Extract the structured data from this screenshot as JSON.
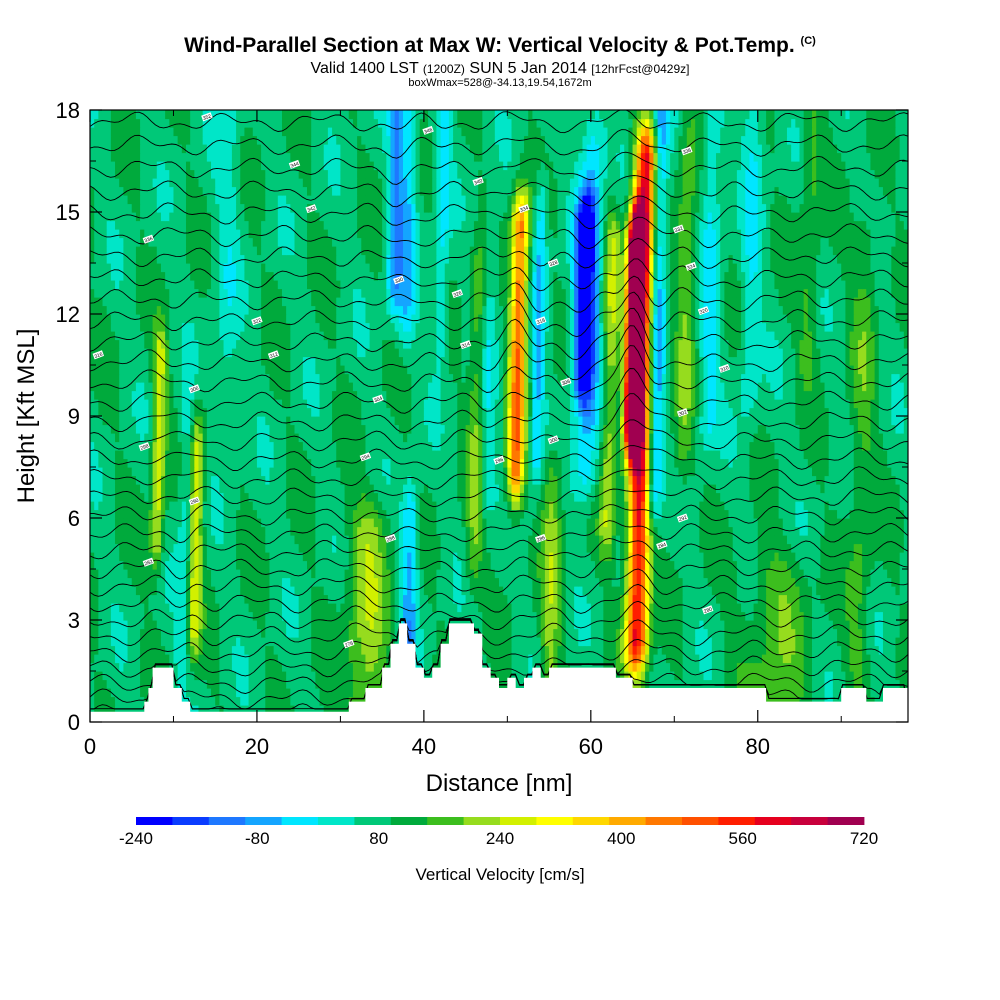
{
  "header": {
    "title": "Wind-Parallel Section at Max W: Vertical Velocity & Pot.Temp.",
    "copyright": "(C)",
    "valid_prefix": "Valid 1400 LST",
    "valid_utc": "(1200Z)",
    "valid_date": "SUN 5 Jan 2014",
    "forecast": "[12hrFcst@0429z]",
    "box_info": "boxWmax=528@-34.13,19.54,1672m"
  },
  "chart_data": {
    "type": "heatmap",
    "title": "Wind-Parallel Section at Max W: Vertical Velocity & Pot.Temp.",
    "xlabel": "Distance [nm]",
    "ylabel": "Height [Kft MSL]",
    "xlim": [
      0,
      98
    ],
    "ylim": [
      0,
      18
    ],
    "x_ticks": [
      "0",
      "20",
      "40",
      "60",
      "80"
    ],
    "y_ticks": [
      "0",
      "3",
      "6",
      "9",
      "12",
      "15",
      "18"
    ],
    "x_tick_values": [
      0,
      20,
      40,
      60,
      80
    ],
    "y_tick_values": [
      0,
      3,
      6,
      9,
      12,
      15,
      18
    ],
    "colorbar": {
      "label": "Vertical Velocity [cm/s]",
      "min": -240,
      "max": 720,
      "step": 40,
      "tick_labels": [
        "-240",
        "-80",
        "80",
        "240",
        "400",
        "560",
        "720"
      ],
      "tick_values": [
        -240,
        -80,
        80,
        240,
        400,
        560,
        720
      ],
      "colors": [
        "#0000ff",
        "#0a3cff",
        "#1e78ff",
        "#14a5ff",
        "#00e6ff",
        "#00e6c8",
        "#00c878",
        "#00aa3c",
        "#3cbe1e",
        "#96dc1e",
        "#d2f000",
        "#ffff00",
        "#ffd700",
        "#ffaa00",
        "#ff7800",
        "#ff5000",
        "#ff1e00",
        "#e6001e",
        "#c8003c",
        "#a00050"
      ]
    },
    "background_velocity": 30,
    "velocity_features": [
      {
        "x": 8.0,
        "z0": 5.5,
        "z1": 10.5,
        "value": 150,
        "width": 0.8
      },
      {
        "x": 12.5,
        "z0": 3.0,
        "z1": 8.0,
        "value": 150,
        "width": 0.8
      },
      {
        "x": 11.0,
        "z0": 2.0,
        "z1": 9.0,
        "value": -60,
        "width": 0.8
      },
      {
        "x": 16.0,
        "z0": 9.0,
        "z1": 18.0,
        "value": -50,
        "width": 1.5
      },
      {
        "x": 33.0,
        "z0": 0.5,
        "z1": 5.5,
        "value": 110,
        "width": 2.5
      },
      {
        "x": 38.0,
        "z0": 1.0,
        "z1": 6.0,
        "value": -120,
        "width": 1.0
      },
      {
        "x": 36.5,
        "z0": 13.0,
        "z1": 18.0,
        "value": -140,
        "width": 1.0
      },
      {
        "x": 38.0,
        "z0": 12.0,
        "z1": 18.0,
        "value": -90,
        "width": 1.0
      },
      {
        "x": 42.0,
        "z0": 11.5,
        "z1": 18.0,
        "value": -80,
        "width": 0.8
      },
      {
        "x": 46.0,
        "z0": 5.0,
        "z1": 13.0,
        "value": 90,
        "width": 1.0
      },
      {
        "x": 47.5,
        "z0": 7.0,
        "z1": 14.0,
        "value": -60,
        "width": 1.0
      },
      {
        "x": 51.0,
        "z0": 7.5,
        "z1": 14.5,
        "value": 320,
        "width": 1.0
      },
      {
        "x": 53.5,
        "z0": 8.0,
        "z1": 15.0,
        "value": -110,
        "width": 0.8
      },
      {
        "x": 55.0,
        "z0": 1.0,
        "z1": 7.0,
        "value": 100,
        "width": 1.2
      },
      {
        "x": 59.0,
        "z0": 10.5,
        "z1": 14.5,
        "value": -240,
        "width": 1.2
      },
      {
        "x": 59.5,
        "z0": 7.5,
        "z1": 17.0,
        "value": -110,
        "width": 1.5
      },
      {
        "x": 62.0,
        "z0": 6.0,
        "z1": 14.0,
        "value": 120,
        "width": 1.0
      },
      {
        "x": 65.5,
        "z0": 2.5,
        "z1": 16.5,
        "value": 430,
        "width": 1.3
      },
      {
        "x": 65.0,
        "z0": 9.0,
        "z1": 14.0,
        "value": 720,
        "width": 0.9
      },
      {
        "x": 67.5,
        "z0": 7.0,
        "z1": 17.5,
        "value": -160,
        "width": 1.0
      },
      {
        "x": 71.0,
        "z0": 8.0,
        "z1": 17.0,
        "value": 80,
        "width": 1.2
      },
      {
        "x": 74.0,
        "z0": 9.0,
        "z1": 17.5,
        "value": -80,
        "width": 1.2
      },
      {
        "x": 79.0,
        "z0": 10.0,
        "z1": 17.5,
        "value": -70,
        "width": 1.2
      },
      {
        "x": 82.0,
        "z0": 0.5,
        "z1": 4.0,
        "value": 70,
        "width": 4.0
      },
      {
        "x": 86.0,
        "z0": 11.0,
        "z1": 17.5,
        "value": 60,
        "width": 1.2
      },
      {
        "x": 92.0,
        "z0": 2.0,
        "z1": 14.0,
        "value": 60,
        "width": 1.5
      }
    ],
    "terrain": [
      [
        0,
        0.3
      ],
      [
        6.5,
        0.3
      ],
      [
        6.5,
        0.6
      ],
      [
        7,
        0.6
      ],
      [
        7,
        1.0
      ],
      [
        7.5,
        1.0
      ],
      [
        7.5,
        1.6
      ],
      [
        10,
        1.6
      ],
      [
        10,
        1.0
      ],
      [
        11,
        1.0
      ],
      [
        11,
        0.6
      ],
      [
        12,
        0.6
      ],
      [
        12,
        0.3
      ],
      [
        31,
        0.3
      ],
      [
        31,
        0.6
      ],
      [
        33,
        0.6
      ],
      [
        33,
        1.0
      ],
      [
        35,
        1.0
      ],
      [
        35,
        1.6
      ],
      [
        36,
        1.6
      ],
      [
        36,
        2.3
      ],
      [
        37,
        2.3
      ],
      [
        37,
        2.9
      ],
      [
        38,
        2.9
      ],
      [
        38,
        2.3
      ],
      [
        39,
        2.3
      ],
      [
        39,
        1.6
      ],
      [
        40,
        1.6
      ],
      [
        40,
        1.3
      ],
      [
        41,
        1.3
      ],
      [
        41,
        1.6
      ],
      [
        42,
        1.6
      ],
      [
        42,
        2.3
      ],
      [
        43,
        2.3
      ],
      [
        43,
        2.9
      ],
      [
        46,
        2.9
      ],
      [
        46,
        2.6
      ],
      [
        47,
        2.6
      ],
      [
        47,
        1.6
      ],
      [
        48,
        1.6
      ],
      [
        48,
        1.3
      ],
      [
        49,
        1.3
      ],
      [
        49,
        1.0
      ],
      [
        50,
        1.0
      ],
      [
        50,
        1.3
      ],
      [
        51,
        1.3
      ],
      [
        51,
        1.0
      ],
      [
        52,
        1.0
      ],
      [
        52,
        1.3
      ],
      [
        53,
        1.3
      ],
      [
        53,
        1.6
      ],
      [
        54,
        1.6
      ],
      [
        54,
        1.3
      ],
      [
        55,
        1.3
      ],
      [
        55,
        1.6
      ],
      [
        63,
        1.6
      ],
      [
        63,
        1.3
      ],
      [
        65,
        1.3
      ],
      [
        65,
        1.0
      ],
      [
        81,
        1.0
      ],
      [
        81,
        0.6
      ],
      [
        90,
        0.6
      ],
      [
        90,
        1.0
      ],
      [
        93,
        1.0
      ],
      [
        93,
        0.6
      ],
      [
        95,
        0.6
      ],
      [
        95,
        1.0
      ],
      [
        98,
        1.0
      ],
      [
        98,
        0
      ]
    ],
    "contour_labels": [
      {
        "x": 14,
        "z": 17.8,
        "label": "352"
      },
      {
        "x": 40.5,
        "z": 17.4,
        "label": "346"
      },
      {
        "x": 24.5,
        "z": 16.4,
        "label": "344"
      },
      {
        "x": 26.5,
        "z": 15.1,
        "label": "342"
      },
      {
        "x": 46.5,
        "z": 15.9,
        "label": "340"
      },
      {
        "x": 71.5,
        "z": 16.8,
        "label": "338"
      },
      {
        "x": 7,
        "z": 14.2,
        "label": "336"
      },
      {
        "x": 52,
        "z": 15.1,
        "label": "334"
      },
      {
        "x": 70.5,
        "z": 14.5,
        "label": "332"
      },
      {
        "x": 37,
        "z": 13.0,
        "label": "330"
      },
      {
        "x": 55.5,
        "z": 13.5,
        "label": "328"
      },
      {
        "x": 44,
        "z": 12.6,
        "label": "326"
      },
      {
        "x": 72,
        "z": 13.4,
        "label": "324"
      },
      {
        "x": 20,
        "z": 11.8,
        "label": "322"
      },
      {
        "x": 73.5,
        "z": 12.1,
        "label": "320"
      },
      {
        "x": 54,
        "z": 11.8,
        "label": "318"
      },
      {
        "x": 1,
        "z": 10.8,
        "label": "316"
      },
      {
        "x": 45,
        "z": 11.1,
        "label": "314"
      },
      {
        "x": 22,
        "z": 10.8,
        "label": "312"
      },
      {
        "x": 76,
        "z": 10.4,
        "label": "310"
      },
      {
        "x": 57,
        "z": 10.0,
        "label": "308"
      },
      {
        "x": 12.5,
        "z": 9.8,
        "label": "306"
      },
      {
        "x": 34.5,
        "z": 9.5,
        "label": "304"
      },
      {
        "x": 71,
        "z": 9.1,
        "label": "302"
      },
      {
        "x": 55.5,
        "z": 8.3,
        "label": "300"
      },
      {
        "x": 6.5,
        "z": 8.1,
        "label": "298"
      },
      {
        "x": 49,
        "z": 7.7,
        "label": "296"
      },
      {
        "x": 33,
        "z": 7.8,
        "label": "294"
      },
      {
        "x": 71,
        "z": 6.0,
        "label": "292"
      },
      {
        "x": 12.5,
        "z": 6.5,
        "label": "290"
      },
      {
        "x": 36,
        "z": 5.4,
        "label": "288"
      },
      {
        "x": 54,
        "z": 5.4,
        "label": "286"
      },
      {
        "x": 68.5,
        "z": 5.2,
        "label": "284"
      },
      {
        "x": 7,
        "z": 4.7,
        "label": "282"
      },
      {
        "x": 74,
        "z": 3.3,
        "label": "280"
      },
      {
        "x": 31,
        "z": 2.3,
        "label": "278"
      }
    ]
  }
}
